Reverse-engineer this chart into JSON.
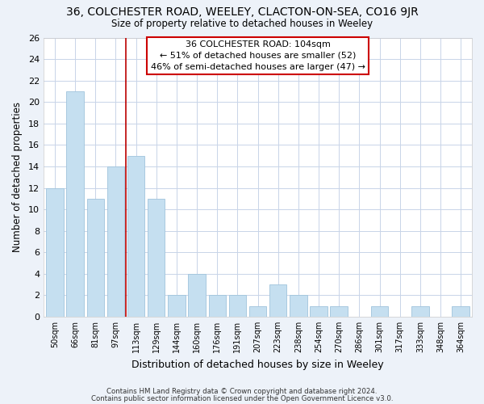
{
  "title1": "36, COLCHESTER ROAD, WEELEY, CLACTON-ON-SEA, CO16 9JR",
  "title2": "Size of property relative to detached houses in Weeley",
  "xlabel": "Distribution of detached houses by size in Weeley",
  "ylabel": "Number of detached properties",
  "categories": [
    "50sqm",
    "66sqm",
    "81sqm",
    "97sqm",
    "113sqm",
    "129sqm",
    "144sqm",
    "160sqm",
    "176sqm",
    "191sqm",
    "207sqm",
    "223sqm",
    "238sqm",
    "254sqm",
    "270sqm",
    "286sqm",
    "301sqm",
    "317sqm",
    "333sqm",
    "348sqm",
    "364sqm"
  ],
  "values": [
    12,
    21,
    11,
    14,
    15,
    11,
    2,
    4,
    2,
    2,
    1,
    3,
    2,
    1,
    1,
    0,
    1,
    0,
    1,
    0,
    1
  ],
  "bar_color": "#c5dff0",
  "bar_edge_color": "#a0c4dc",
  "grid_color": "#c8d4e8",
  "vline_x": 3.5,
  "vline_color": "#bb0000",
  "annotation_box_edge": "#cc0000",
  "annotation_lines": [
    "36 COLCHESTER ROAD: 104sqm",
    "← 51% of detached houses are smaller (52)",
    "46% of semi-detached houses are larger (47) →"
  ],
  "ylim": [
    0,
    26
  ],
  "yticks": [
    0,
    2,
    4,
    6,
    8,
    10,
    12,
    14,
    16,
    18,
    20,
    22,
    24,
    26
  ],
  "footer1": "Contains HM Land Registry data © Crown copyright and database right 2024.",
  "footer2": "Contains public sector information licensed under the Open Government Licence v3.0.",
  "bg_color": "#edf2f9",
  "plot_bg_color": "#ffffff"
}
